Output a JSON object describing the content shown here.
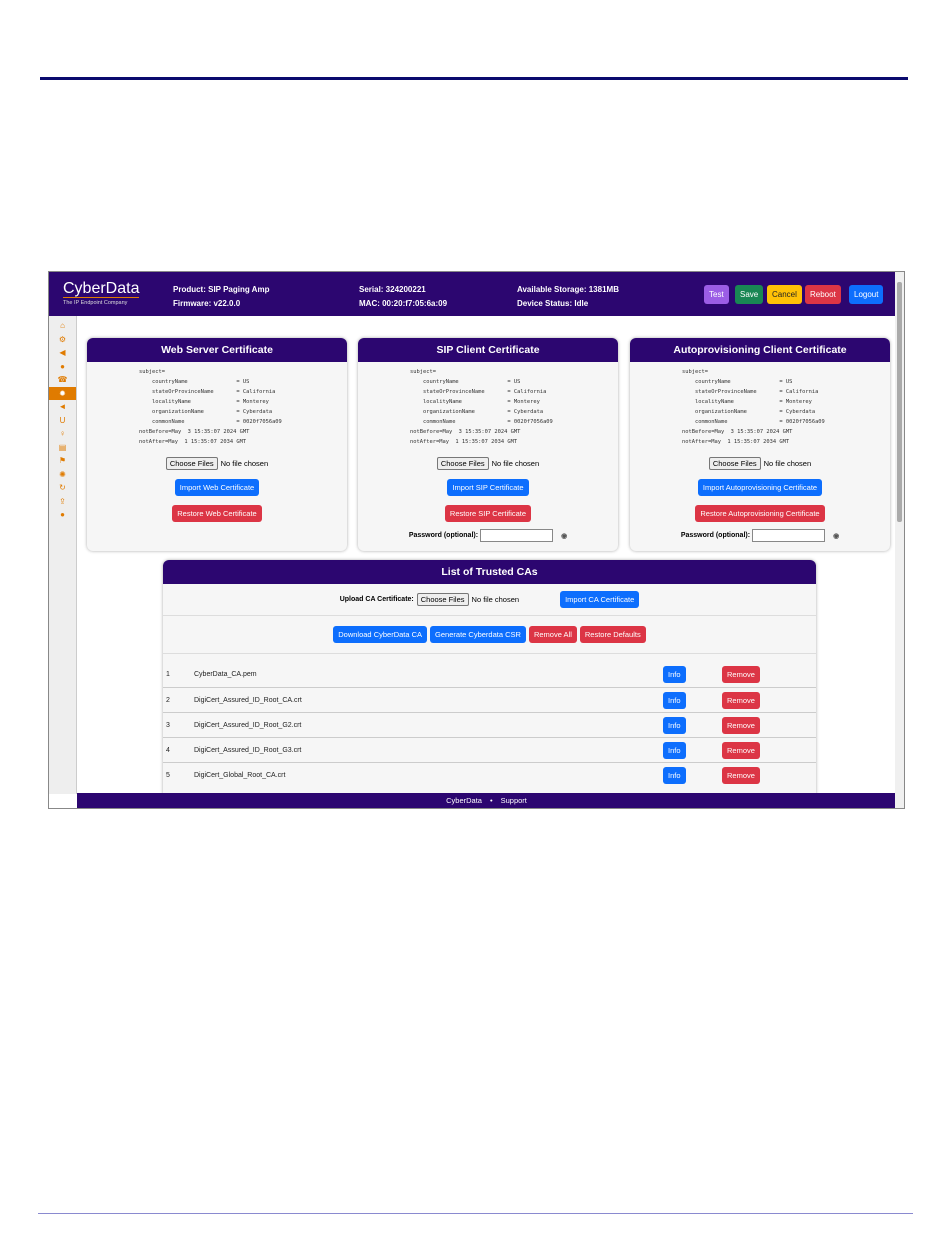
{
  "header": {
    "brand": "CyberData",
    "tagline": "The IP Endpoint Company",
    "product": "Product: SIP Paging Amp",
    "firmware": "Firmware: v22.0.0",
    "serial": "Serial: 324200221",
    "mac": "MAC: 00:20:f7:05:6a:09",
    "storage": "Available Storage: 1381MB",
    "status": "Device Status: Idle",
    "buttons": [
      {
        "label": "Test",
        "color": "#9b5de5"
      },
      {
        "label": "Save",
        "color": "#198754"
      },
      {
        "label": "Cancel",
        "color": "#ffc107"
      },
      {
        "label": "Reboot",
        "color": "#dc3545"
      },
      {
        "label": "Logout",
        "color": "#0d6efd"
      }
    ]
  },
  "sidebar": {
    "icons": [
      "home-icon",
      "gears-icon",
      "speaker-icon",
      "globe-icon",
      "phone-icon",
      "certificate-icon",
      "megaphone-icon",
      "magnet-icon",
      "bulb-icon",
      "document-icon",
      "flag-icon",
      "alarm-icon",
      "refresh-icon",
      "upload-icon",
      "user-icon"
    ],
    "active": 5
  },
  "certs": [
    {
      "title": "Web Server Certificate",
      "import": "Import Web Certificate",
      "restore": "Restore Web Certificate",
      "password": false
    },
    {
      "title": "SIP Client Certificate",
      "import": "Import SIP Certificate",
      "restore": "Restore SIP Certificate",
      "password": true
    },
    {
      "title": "Autoprovisioning Client Certificate",
      "import": "Import Autoprovisioning Certificate",
      "restore": "Restore Autoprovisioning Certificate",
      "password": true
    }
  ],
  "cert_text": "subject=\n    countryName               = US\n    stateOrProvinceName       = California\n    localityName              = Monterey\n    organizationName          = Cyberdata\n    commonName                = 0020f7056a09\nnotBefore=May  3 15:35:07 2024 GMT\nnotAfter=May  1 15:35:07 2034 GMT",
  "choose_files": "Choose Files",
  "no_file": "No file chosen",
  "password_label": "Password (optional):",
  "trusted": {
    "title": "List of Trusted CAs",
    "upload_label": "Upload CA Certificate:",
    "import": "Import CA Certificate",
    "download": "Download CyberData CA",
    "generate": "Generate Cyberdata CSR",
    "remove_all": "Remove All",
    "restore_defaults": "Restore Defaults",
    "info": "Info",
    "remove": "Remove",
    "rows": [
      {
        "n": "1",
        "name": "CyberData_CA.pem"
      },
      {
        "n": "2",
        "name": "DigiCert_Assured_ID_Root_CA.crt"
      },
      {
        "n": "3",
        "name": "DigiCert_Assured_ID_Root_G2.crt"
      },
      {
        "n": "4",
        "name": "DigiCert_Assured_ID_Root_G3.crt"
      },
      {
        "n": "5",
        "name": "DigiCert_Global_Root_CA.crt"
      }
    ]
  },
  "footer": {
    "left": "CyberData",
    "sep": "•",
    "right": "Support"
  }
}
